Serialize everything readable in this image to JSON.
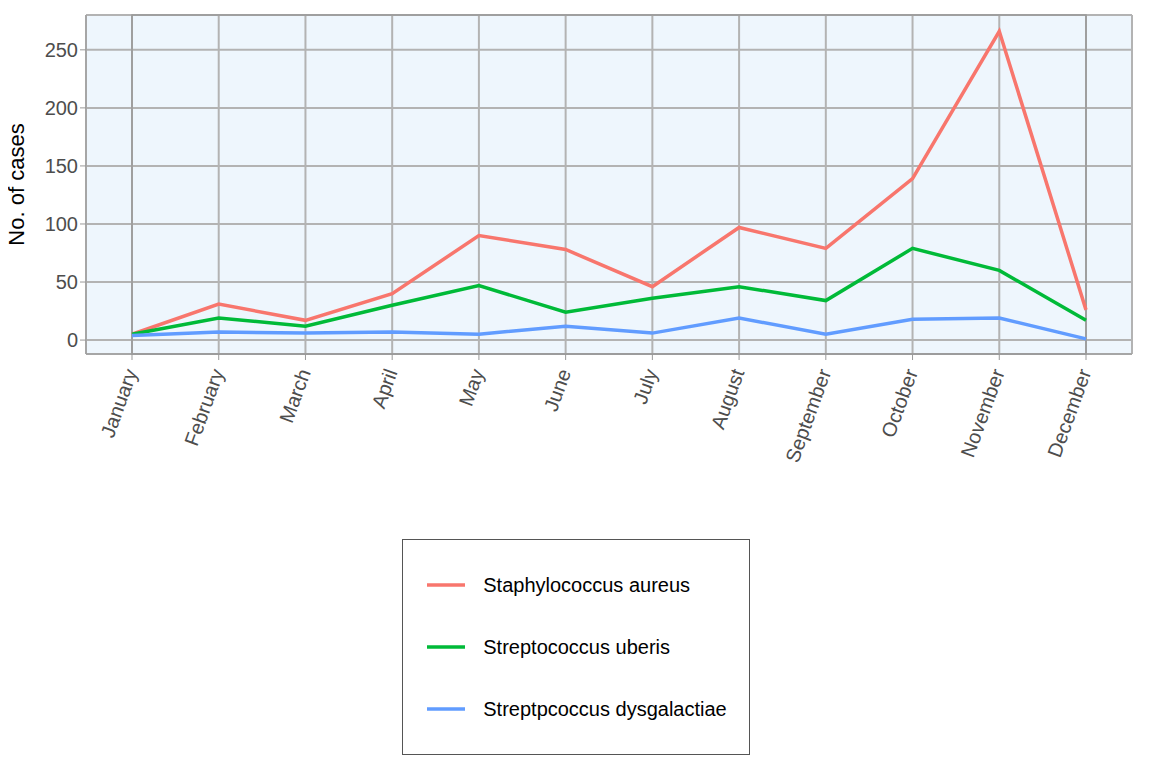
{
  "chart_data": {
    "type": "line",
    "y_label": "No. of cases",
    "categories": [
      "January",
      "February",
      "March",
      "April",
      "May",
      "June",
      "July",
      "August",
      "September",
      "October",
      "November",
      "December"
    ],
    "series": [
      {
        "name": "Staphylococcus aureus",
        "color": "#f8766d",
        "values": [
          5,
          31,
          17,
          40,
          90,
          78,
          46,
          97,
          79,
          139,
          266,
          26
        ]
      },
      {
        "name": "Streptococcus uberis",
        "color": "#00ba38",
        "values": [
          5,
          19,
          12,
          30,
          47,
          24,
          36,
          46,
          34,
          79,
          60,
          17
        ]
      },
      {
        "name": "Streptpcoccus dysgalactiae",
        "color": "#619cff",
        "values": [
          4,
          7,
          6,
          7,
          5,
          12,
          6,
          19,
          5,
          18,
          19,
          1
        ]
      }
    ],
    "ylim": [
      -12,
      280
    ],
    "yticks": [
      0,
      50,
      100,
      150,
      200,
      250
    ],
    "grid": true,
    "legend": "bottom"
  }
}
